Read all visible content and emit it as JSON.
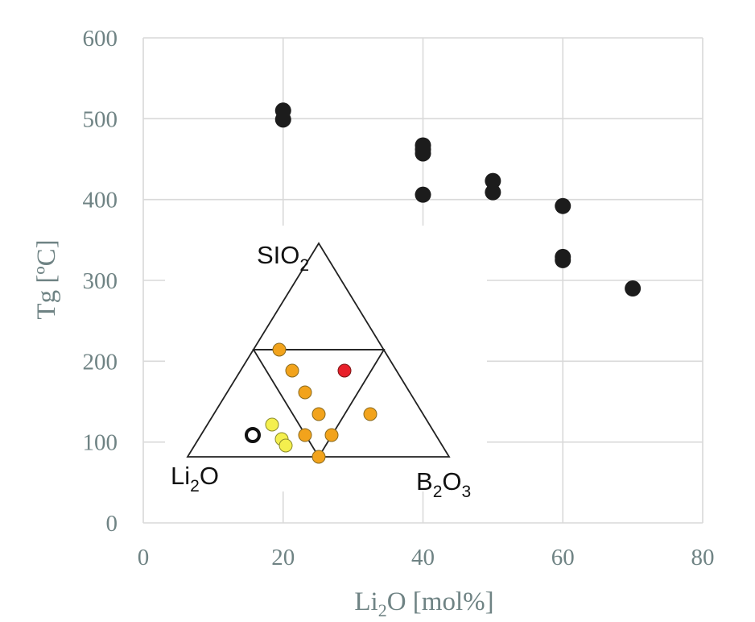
{
  "chart_data": {
    "type": "scatter",
    "xlabel": "Li2O [mol%]",
    "xlabel_main": "Li",
    "xlabel_sub": "2",
    "xlabel_rest": "O [mol%]",
    "ylabel": "Tg [ºC]",
    "xlim": [
      0,
      80
    ],
    "ylim": [
      0,
      600
    ],
    "x_ticks": [
      0,
      20,
      40,
      60,
      80
    ],
    "y_ticks": [
      0,
      100,
      200,
      300,
      400,
      500,
      600
    ],
    "x_tick_labels": [
      "0",
      "20",
      "40",
      "60",
      "80"
    ],
    "y_tick_labels": [
      "0",
      "100",
      "200",
      "300",
      "400",
      "500",
      "600"
    ],
    "grid": true,
    "marker_color": "#1c1c1c",
    "x": [
      20,
      20,
      40,
      40,
      40,
      40,
      50,
      50,
      60,
      60,
      60,
      70
    ],
    "y": [
      510,
      499,
      467,
      462,
      457,
      406,
      423,
      409,
      392,
      329,
      325,
      290
    ],
    "inset": {
      "type": "ternary",
      "vertices": {
        "top": {
          "text": "SIO",
          "sub": "2"
        },
        "left": {
          "text": "Li",
          "sub": "2",
          "rest": "O"
        },
        "right": {
          "text": "B",
          "sub": "2",
          "rest": "O",
          "sub2": "3"
        }
      },
      "line_color": "#222222",
      "colors": {
        "orange": "#f2a31c",
        "yellow": "#f4ef4e",
        "red": "#e8202a",
        "open": "#111111"
      }
    }
  }
}
